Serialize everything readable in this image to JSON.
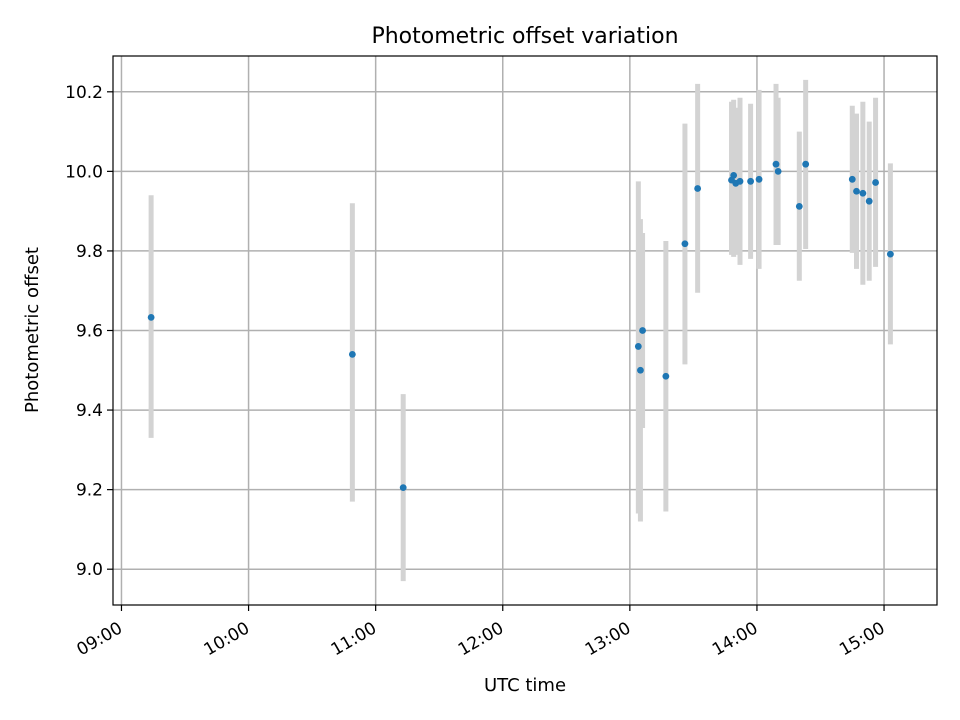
{
  "chart_data": {
    "type": "scatter",
    "title": "Photometric offset variation",
    "xlabel": "UTC time",
    "ylabel": "Photometric offset",
    "x_ticks": [
      "09:00",
      "10:00",
      "11:00",
      "12:00",
      "13:00",
      "14:00",
      "15:00"
    ],
    "y_ticks": [
      "9.0",
      "9.2",
      "9.4",
      "9.6",
      "9.8",
      "10.0",
      "10.2"
    ],
    "ylim": [
      8.91,
      10.29
    ],
    "xlim": [
      "08:56",
      "15:25"
    ],
    "grid": true,
    "point_color": "#1f77b4",
    "errorbar_color": "#d3d3d3",
    "points": [
      {
        "x": "09:14",
        "y": 9.633,
        "lo": 9.33,
        "hi": 9.94
      },
      {
        "x": "10:49",
        "y": 9.54,
        "lo": 9.17,
        "hi": 9.92
      },
      {
        "x": "11:13",
        "y": 9.205,
        "lo": 8.97,
        "hi": 9.44
      },
      {
        "x": "13:04",
        "y": 9.56,
        "lo": 9.14,
        "hi": 9.975
      },
      {
        "x": "13:05",
        "y": 9.5,
        "lo": 9.12,
        "hi": 9.88
      },
      {
        "x": "13:06",
        "y": 9.6,
        "lo": 9.355,
        "hi": 9.845
      },
      {
        "x": "13:17",
        "y": 9.485,
        "lo": 9.145,
        "hi": 9.825
      },
      {
        "x": "13:26",
        "y": 9.818,
        "lo": 9.515,
        "hi": 10.12
      },
      {
        "x": "13:32",
        "y": 9.957,
        "lo": 9.695,
        "hi": 10.22
      },
      {
        "x": "13:48",
        "y": 9.978,
        "lo": 9.79,
        "hi": 10.175
      },
      {
        "x": "13:49",
        "y": 9.99,
        "lo": 9.785,
        "hi": 10.18
      },
      {
        "x": "13:50",
        "y": 9.97,
        "lo": 9.79,
        "hi": 10.16
      },
      {
        "x": "13:52",
        "y": 9.975,
        "lo": 9.765,
        "hi": 10.185
      },
      {
        "x": "13:57",
        "y": 9.975,
        "lo": 9.78,
        "hi": 10.17
      },
      {
        "x": "14:01",
        "y": 9.98,
        "lo": 9.755,
        "hi": 10.205
      },
      {
        "x": "14:09",
        "y": 10.018,
        "lo": 9.815,
        "hi": 10.22
      },
      {
        "x": "14:10",
        "y": 10.0,
        "lo": 9.815,
        "hi": 10.185
      },
      {
        "x": "14:20",
        "y": 9.912,
        "lo": 9.725,
        "hi": 10.1
      },
      {
        "x": "14:23",
        "y": 10.018,
        "lo": 9.805,
        "hi": 10.23
      },
      {
        "x": "14:45",
        "y": 9.98,
        "lo": 9.795,
        "hi": 10.165
      },
      {
        "x": "14:47",
        "y": 9.95,
        "lo": 9.755,
        "hi": 10.145
      },
      {
        "x": "14:50",
        "y": 9.945,
        "lo": 9.715,
        "hi": 10.175
      },
      {
        "x": "14:53",
        "y": 9.925,
        "lo": 9.725,
        "hi": 10.125
      },
      {
        "x": "14:56",
        "y": 9.972,
        "lo": 9.76,
        "hi": 10.185
      },
      {
        "x": "15:03",
        "y": 9.792,
        "lo": 9.565,
        "hi": 10.02
      }
    ]
  }
}
